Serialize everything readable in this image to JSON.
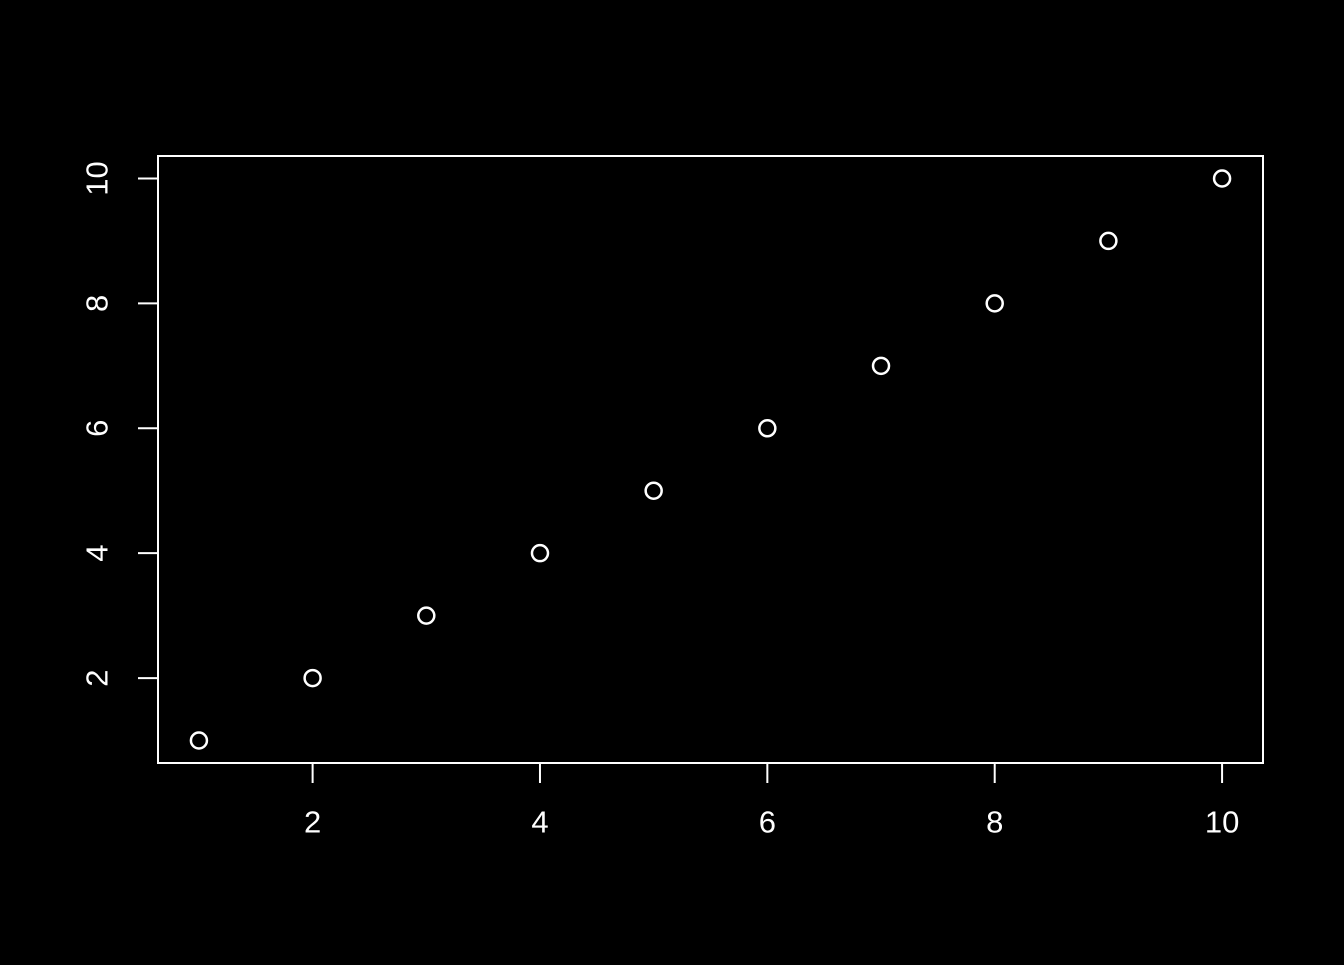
{
  "chart_data": {
    "type": "scatter",
    "title": "",
    "xlabel": "",
    "ylabel": "",
    "x": [
      1,
      2,
      3,
      4,
      5,
      6,
      7,
      8,
      9,
      10
    ],
    "y": [
      1,
      2,
      3,
      4,
      5,
      6,
      7,
      8,
      9,
      10
    ],
    "xlim": [
      0.64,
      10.36
    ],
    "ylim": [
      0.64,
      10.36
    ],
    "x_tick_values": [
      2,
      4,
      6,
      8,
      10
    ],
    "x_tick_labels": [
      "2",
      "4",
      "6",
      "8",
      "10"
    ],
    "y_tick_values": [
      2,
      4,
      6,
      8,
      10
    ],
    "y_tick_labels": [
      "2",
      "4",
      "6",
      "8",
      "10"
    ],
    "grid": false,
    "legend": null,
    "marker": "open-circle",
    "colors": {
      "background": "#000000",
      "foreground": "#ffffff"
    }
  }
}
